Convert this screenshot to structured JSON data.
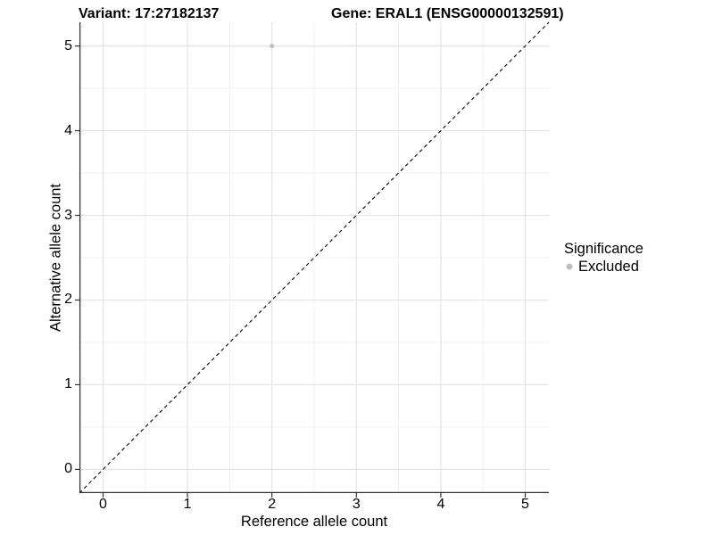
{
  "chart_data": {
    "type": "scatter",
    "title_left": "Variant: 17:27182137",
    "title_right": "Gene: ERAL1 (ENSG00000132591)",
    "xlabel": "Reference allele count",
    "ylabel": "Alternative allele count",
    "xlim": [
      -0.28,
      5.28
    ],
    "ylim": [
      -0.28,
      5.28
    ],
    "xticks": [
      0,
      1,
      2,
      3,
      4,
      5
    ],
    "yticks": [
      0,
      1,
      2,
      3,
      4,
      5
    ],
    "xminor": [
      0.5,
      1.5,
      2.5,
      3.5,
      4.5
    ],
    "yminor": [
      0.5,
      1.5,
      2.5,
      3.5,
      4.5
    ],
    "grid": "on",
    "identity_line": {
      "equation": "y = x",
      "style": "dashed",
      "color": "#000000"
    },
    "series": [
      {
        "name": "Excluded",
        "color": "#bebebe",
        "point_radius": 2.5,
        "points": [
          {
            "x": 2,
            "y": 5
          }
        ]
      }
    ],
    "legend": {
      "position": "right",
      "title": "Significance",
      "entries": [
        {
          "label": "Excluded",
          "color": "#bebebe"
        }
      ]
    },
    "colors": {
      "major_grid": "#e4e4e4",
      "minor_grid": "#f1f1f1",
      "axis_line": "#333333",
      "tick_mark": "#333333",
      "text": "#000000"
    }
  }
}
